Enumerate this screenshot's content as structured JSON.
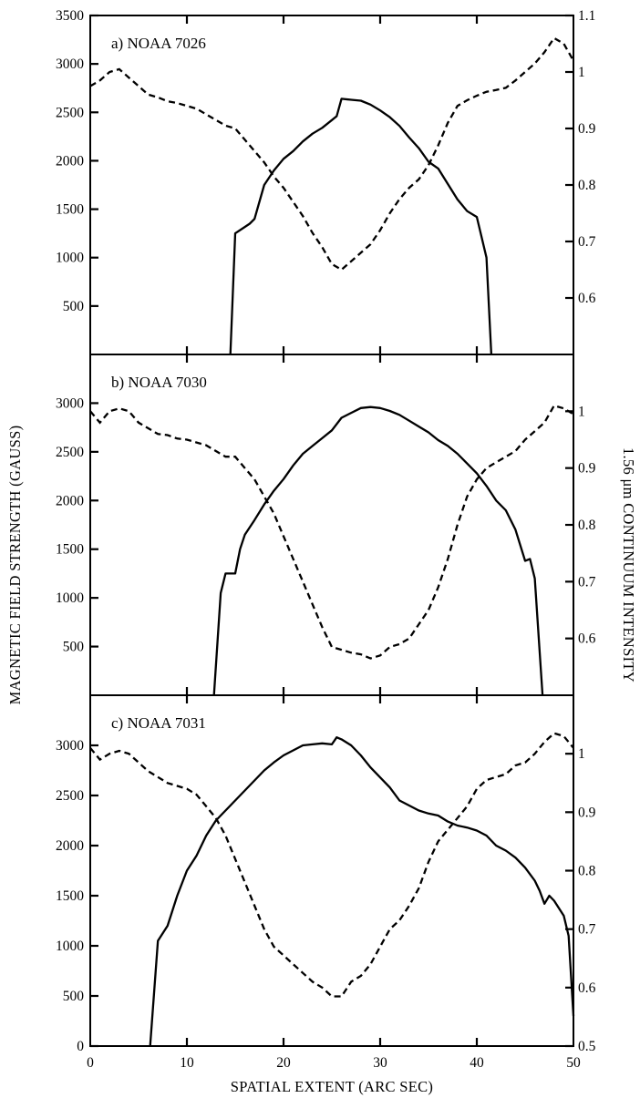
{
  "figure": {
    "y_left_label": "MAGNETIC FIELD STRENGTH (GAUSS)",
    "y_right_label": "1.56 μm CONTINUUM INTENSITY",
    "x_label": "SPATIAL EXTENT (ARC SEC)"
  },
  "chart_data": [
    {
      "type": "line",
      "title": "a) NOAA 7026",
      "xlabel": "SPATIAL EXTENT (ARC SEC)",
      "ylabel": "MAGNETIC FIELD STRENGTH (GAUSS)",
      "y2label": "1.56 μm CONTINUUM INTENSITY",
      "xlim": [
        0,
        50
      ],
      "ylim": [
        0,
        3500
      ],
      "y2lim": [
        0.5,
        1.1
      ],
      "left_ticks": [
        500,
        1000,
        1500,
        2000,
        2500,
        3000,
        3500
      ],
      "left_tick_labels": [
        "500",
        "1000",
        "1500",
        "2000",
        "2500",
        "3000",
        "3500"
      ],
      "right_ticks": [
        0.6,
        0.7,
        0.8,
        0.9,
        1.0,
        1.1
      ],
      "right_tick_labels": [
        "0.6",
        "0.7",
        "0.8",
        "0.9",
        "1",
        "1.1"
      ],
      "x_ticks": [
        10,
        20,
        30,
        40
      ],
      "series": [
        {
          "axis": "left",
          "style": "solid",
          "x": [
            14.5,
            15,
            16.5,
            17,
            18,
            19,
            20,
            21,
            22,
            23,
            24,
            25,
            25.5,
            26,
            27,
            28,
            29,
            30,
            31,
            32,
            33,
            34,
            35,
            36,
            37,
            38,
            39,
            40,
            41,
            41.5
          ],
          "y": [
            0,
            1250,
            1350,
            1400,
            1750,
            1900,
            2020,
            2100,
            2200,
            2280,
            2340,
            2420,
            2460,
            2640,
            2630,
            2620,
            2580,
            2520,
            2450,
            2360,
            2240,
            2130,
            1990,
            1920,
            1760,
            1600,
            1480,
            1420,
            1000,
            0
          ]
        },
        {
          "axis": "right",
          "style": "dashed",
          "x": [
            0,
            1,
            2,
            3,
            4,
            5,
            6,
            7,
            8,
            9,
            10,
            11,
            12,
            13,
            14,
            15,
            16,
            17,
            18,
            19,
            20,
            21,
            22,
            23,
            24,
            25,
            26,
            27,
            28,
            29,
            30,
            31,
            32,
            33,
            34,
            35,
            36,
            37,
            38,
            39,
            40,
            41,
            42,
            43,
            44,
            45,
            46,
            47,
            48,
            49,
            50
          ],
          "y": [
            0.975,
            0.985,
            1.0,
            1.005,
            0.99,
            0.975,
            0.96,
            0.955,
            0.948,
            0.945,
            0.94,
            0.935,
            0.925,
            0.915,
            0.905,
            0.9,
            0.88,
            0.86,
            0.84,
            0.815,
            0.795,
            0.77,
            0.745,
            0.715,
            0.69,
            0.66,
            0.65,
            0.665,
            0.68,
            0.695,
            0.72,
            0.75,
            0.775,
            0.795,
            0.81,
            0.835,
            0.87,
            0.91,
            0.94,
            0.95,
            0.958,
            0.965,
            0.968,
            0.972,
            0.985,
            1.0,
            1.015,
            1.035,
            1.06,
            1.05,
            1.02
          ]
        }
      ]
    },
    {
      "type": "line",
      "title": "b) NOAA 7030",
      "xlabel": "SPATIAL EXTENT (ARC SEC)",
      "ylabel": "MAGNETIC FIELD STRENGTH (GAUSS)",
      "y2label": "1.56 μm CONTINUUM INTENSITY",
      "xlim": [
        0,
        50
      ],
      "ylim": [
        0,
        3500
      ],
      "y2lim": [
        0.5,
        1.1
      ],
      "left_ticks": [
        500,
        1000,
        1500,
        2000,
        2500,
        3000
      ],
      "left_tick_labels": [
        "500",
        "1000",
        "1500",
        "2000",
        "2500",
        "3000"
      ],
      "right_ticks": [
        0.6,
        0.7,
        0.8,
        0.9,
        1.0
      ],
      "right_tick_labels": [
        "0.6",
        "0.7",
        "0.8",
        "0.9",
        "1"
      ],
      "x_ticks": [
        10,
        20,
        30,
        40
      ],
      "series": [
        {
          "axis": "left",
          "style": "solid",
          "x": [
            12.8,
            13.5,
            14,
            15,
            15.5,
            16,
            17,
            18,
            19,
            20,
            21,
            22,
            23,
            24,
            25,
            26,
            27,
            28,
            29,
            30,
            31,
            32,
            33,
            34,
            35,
            36,
            37,
            38,
            39,
            40,
            41,
            42,
            43,
            44,
            45,
            45.5,
            46,
            46.8
          ],
          "y": [
            0,
            1050,
            1250,
            1250,
            1500,
            1650,
            1800,
            1960,
            2100,
            2220,
            2360,
            2480,
            2560,
            2640,
            2720,
            2850,
            2900,
            2950,
            2960,
            2950,
            2920,
            2880,
            2820,
            2760,
            2700,
            2620,
            2560,
            2480,
            2380,
            2280,
            2150,
            2000,
            1900,
            1700,
            1380,
            1400,
            1200,
            0
          ]
        },
        {
          "axis": "right",
          "style": "dashed",
          "x": [
            0,
            1,
            2,
            3,
            4,
            5,
            6,
            7,
            8,
            9,
            10,
            11,
            12,
            13,
            14,
            15,
            16,
            17,
            18,
            19,
            20,
            21,
            22,
            23,
            24,
            25,
            26,
            27,
            28,
            29,
            30,
            31,
            32,
            33,
            34,
            35,
            36,
            37,
            38,
            39,
            40,
            41,
            42,
            43,
            44,
            45,
            46,
            47,
            48,
            49,
            50
          ],
          "y": [
            1.0,
            0.98,
            1.0,
            1.005,
            1.0,
            0.98,
            0.97,
            0.96,
            0.958,
            0.952,
            0.95,
            0.945,
            0.94,
            0.93,
            0.92,
            0.92,
            0.9,
            0.88,
            0.85,
            0.82,
            0.78,
            0.74,
            0.7,
            0.66,
            0.62,
            0.585,
            0.58,
            0.575,
            0.572,
            0.565,
            0.57,
            0.585,
            0.59,
            0.6,
            0.625,
            0.65,
            0.69,
            0.74,
            0.8,
            0.85,
            0.88,
            0.9,
            0.91,
            0.92,
            0.93,
            0.95,
            0.965,
            0.98,
            1.01,
            1.005,
            0.995
          ]
        }
      ]
    },
    {
      "type": "line",
      "title": "c) NOAA 7031",
      "xlabel": "SPATIAL EXTENT (ARC SEC)",
      "ylabel": "MAGNETIC FIELD STRENGTH (GAUSS)",
      "y2label": "1.56 μm CONTINUUM INTENSITY",
      "xlim": [
        0,
        50
      ],
      "ylim": [
        0,
        3500
      ],
      "y2lim": [
        0.5,
        1.1
      ],
      "left_ticks": [
        0,
        500,
        1000,
        1500,
        2000,
        2500,
        3000
      ],
      "left_tick_labels": [
        "0",
        "500",
        "1000",
        "1500",
        "2000",
        "2500",
        "3000"
      ],
      "right_ticks": [
        0.5,
        0.6,
        0.7,
        0.8,
        0.9,
        1.0
      ],
      "right_tick_labels": [
        "0.5",
        "0.6",
        "0.7",
        "0.8",
        "0.9",
        "1"
      ],
      "x_ticks": [
        0,
        10,
        20,
        30,
        40,
        50
      ],
      "x_tick_labels": [
        "0",
        "10",
        "20",
        "30",
        "40",
        "50"
      ],
      "series": [
        {
          "axis": "left",
          "style": "solid",
          "x": [
            6.2,
            7,
            8,
            9,
            10,
            11,
            12,
            13,
            14,
            15,
            16,
            17,
            18,
            19,
            20,
            21,
            22,
            23,
            24,
            25,
            25.5,
            26,
            27,
            28,
            29,
            30,
            31,
            32,
            33,
            34,
            35,
            36,
            37,
            38,
            39,
            40,
            41,
            42,
            43,
            44,
            45,
            46,
            46.5,
            47,
            47.5,
            48,
            49,
            49.5,
            50
          ],
          "y": [
            0,
            1050,
            1200,
            1500,
            1750,
            1900,
            2100,
            2250,
            2350,
            2450,
            2550,
            2650,
            2750,
            2830,
            2900,
            2950,
            3000,
            3010,
            3020,
            3010,
            3080,
            3060,
            3000,
            2900,
            2780,
            2680,
            2580,
            2450,
            2400,
            2350,
            2320,
            2300,
            2240,
            2200,
            2180,
            2150,
            2100,
            2000,
            1950,
            1880,
            1780,
            1650,
            1550,
            1420,
            1500,
            1450,
            1300,
            1100,
            300
          ]
        },
        {
          "axis": "right",
          "style": "dashed",
          "x": [
            0,
            1,
            2,
            3,
            4,
            5,
            6,
            7,
            8,
            9,
            10,
            11,
            12,
            13,
            14,
            15,
            16,
            17,
            18,
            19,
            20,
            21,
            22,
            23,
            24,
            25,
            26,
            27,
            28,
            29,
            30,
            31,
            32,
            33,
            34,
            35,
            36,
            37,
            38,
            39,
            40,
            41,
            42,
            43,
            44,
            45,
            46,
            47,
            48,
            49,
            50
          ],
          "y": [
            1.01,
            0.99,
            1.0,
            1.005,
            1.0,
            0.985,
            0.97,
            0.96,
            0.95,
            0.945,
            0.94,
            0.93,
            0.91,
            0.89,
            0.86,
            0.82,
            0.78,
            0.74,
            0.7,
            0.67,
            0.655,
            0.64,
            0.625,
            0.61,
            0.6,
            0.585,
            0.585,
            0.61,
            0.62,
            0.64,
            0.67,
            0.7,
            0.715,
            0.74,
            0.77,
            0.815,
            0.85,
            0.87,
            0.89,
            0.91,
            0.94,
            0.955,
            0.96,
            0.965,
            0.98,
            0.985,
            1.0,
            1.02,
            1.035,
            1.03,
            1.01
          ]
        }
      ]
    }
  ]
}
